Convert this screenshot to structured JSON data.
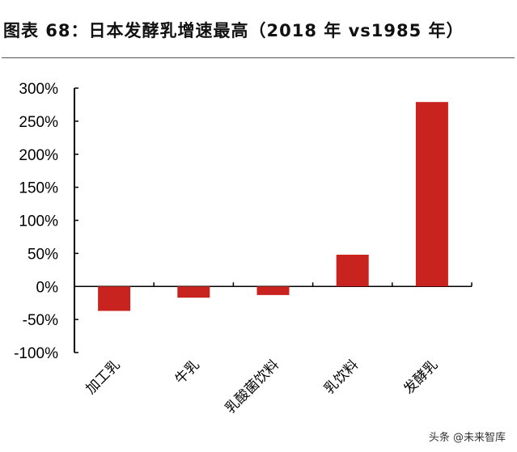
{
  "title": "图表 68：日本发酵乳增速最高（2018 年 vs1985 年）",
  "watermark": "头条 @未来智库",
  "chart_data": {
    "type": "bar",
    "title": "图表 68：日本发酵乳增速最高（2018 年 vs1985 年）",
    "categories": [
      "加工乳",
      "牛乳",
      "乳酸菌饮料",
      "乳饮料",
      "发酵乳"
    ],
    "values": [
      -37,
      -17,
      -13,
      48,
      279
    ],
    "unit": "%",
    "ylim": [
      -100,
      300
    ],
    "yticks": [
      -100,
      -50,
      0,
      50,
      100,
      150,
      200,
      250,
      300
    ],
    "ytick_labels": [
      "-100%",
      "-50%",
      "0%",
      "50%",
      "100%",
      "150%",
      "200%",
      "250%",
      "300%"
    ],
    "bar_color": "#c9231f",
    "grid": false,
    "legend": "none"
  }
}
